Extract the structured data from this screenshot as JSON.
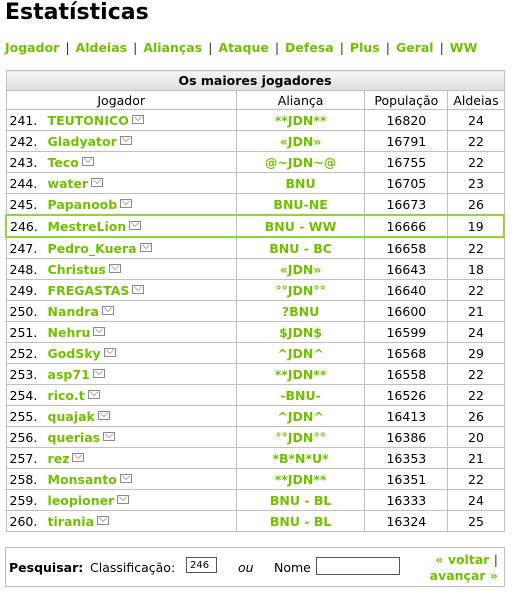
{
  "page_title": "Estatísticas",
  "nav": [
    "Jogador",
    "Aldeias",
    "Alianças",
    "Ataque",
    "Defesa",
    "Plus",
    "Geral",
    "WW"
  ],
  "nav_separator": "|",
  "table": {
    "caption": "Os maiores jogadores",
    "columns": [
      "Jogador",
      "Aliança",
      "População",
      "Aldeias"
    ],
    "highlighted_rank": "246.",
    "rows": [
      {
        "rank": "241.",
        "player": "TEUTONICO",
        "alliance": "**JDN**",
        "population": "16820",
        "villages": "24"
      },
      {
        "rank": "242.",
        "player": "Gladyator",
        "alliance": "«JDN»",
        "population": "16791",
        "villages": "22"
      },
      {
        "rank": "243.",
        "player": "Teco",
        "alliance": "@~JDN~@",
        "population": "16755",
        "villages": "22"
      },
      {
        "rank": "244.",
        "player": "water",
        "alliance": "BNU",
        "population": "16705",
        "villages": "23"
      },
      {
        "rank": "245.",
        "player": "Papanoob",
        "alliance": "BNU-NE",
        "population": "16673",
        "villages": "26"
      },
      {
        "rank": "246.",
        "player": "MestreLion",
        "alliance": "BNU - WW",
        "population": "16666",
        "villages": "19"
      },
      {
        "rank": "247.",
        "player": "Pedro_Kuera",
        "alliance": "BNU - BC",
        "population": "16658",
        "villages": "22"
      },
      {
        "rank": "248.",
        "player": "Christus",
        "alliance": "«JDN»",
        "population": "16643",
        "villages": "18"
      },
      {
        "rank": "249.",
        "player": "FREGASTAS",
        "alliance": "°°JDN°°",
        "population": "16640",
        "villages": "22"
      },
      {
        "rank": "250.",
        "player": "Nandra",
        "alliance": "?BNU",
        "population": "16600",
        "villages": "21"
      },
      {
        "rank": "251.",
        "player": "Nehru",
        "alliance": "$JDN$",
        "population": "16599",
        "villages": "24"
      },
      {
        "rank": "252.",
        "player": "GodSky",
        "alliance": "^JDN^",
        "population": "16568",
        "villages": "29"
      },
      {
        "rank": "253.",
        "player": "asp71",
        "alliance": "**JDN**",
        "population": "16558",
        "villages": "22"
      },
      {
        "rank": "254.",
        "player": "rico.t",
        "alliance": "-BNU-",
        "population": "16526",
        "villages": "22"
      },
      {
        "rank": "255.",
        "player": "quajak",
        "alliance": "^JDN^",
        "population": "16413",
        "villages": "26"
      },
      {
        "rank": "256.",
        "player": "querias",
        "alliance": "°°JDN°°",
        "population": "16386",
        "villages": "20"
      },
      {
        "rank": "257.",
        "player": "rez",
        "alliance": "*B*N*U*",
        "population": "16353",
        "villages": "21"
      },
      {
        "rank": "258.",
        "player": "Monsanto",
        "alliance": "**JDN**",
        "population": "16351",
        "villages": "22"
      },
      {
        "rank": "259.",
        "player": "leopioner",
        "alliance": "BNU - BL",
        "population": "16333",
        "villages": "24"
      },
      {
        "rank": "260.",
        "player": "tirania",
        "alliance": "BNU - BL",
        "population": "16324",
        "villages": "25"
      }
    ]
  },
  "search": {
    "label": "Pesquisar:",
    "rank_label": "Classificação:",
    "rank_value": "246",
    "or_text": "ou",
    "name_label": "Nome",
    "name_value": "",
    "prev_label": "« voltar",
    "separator": "|",
    "next_label": "avançar »"
  },
  "colors": {
    "link": "#71c000",
    "highlight_border": "#8fd63b",
    "table_border": "#c0c0c0"
  },
  "icons": {
    "message": "envelope-icon"
  }
}
